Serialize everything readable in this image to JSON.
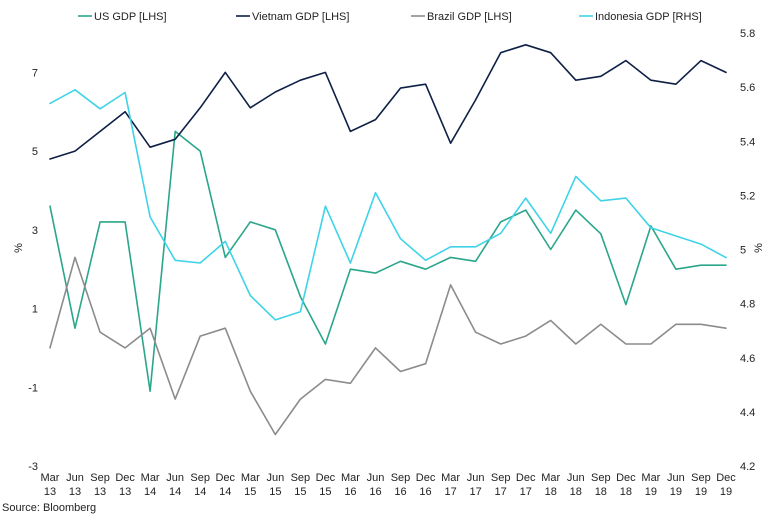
{
  "chart_data": {
    "type": "line",
    "categories": [
      [
        "Mar",
        "13"
      ],
      [
        "Jun",
        "13"
      ],
      [
        "Sep",
        "13"
      ],
      [
        "Dec",
        "13"
      ],
      [
        "Mar",
        "14"
      ],
      [
        "Jun",
        "14"
      ],
      [
        "Sep",
        "14"
      ],
      [
        "Dec",
        "14"
      ],
      [
        "Mar",
        "15"
      ],
      [
        "Jun",
        "15"
      ],
      [
        "Sep",
        "15"
      ],
      [
        "Dec",
        "15"
      ],
      [
        "Mar",
        "16"
      ],
      [
        "Jun",
        "16"
      ],
      [
        "Sep",
        "16"
      ],
      [
        "Dec",
        "16"
      ],
      [
        "Mar",
        "17"
      ],
      [
        "Jun",
        "17"
      ],
      [
        "Sep",
        "17"
      ],
      [
        "Dec",
        "17"
      ],
      [
        "Mar",
        "18"
      ],
      [
        "Jun",
        "18"
      ],
      [
        "Sep",
        "18"
      ],
      [
        "Dec",
        "18"
      ],
      [
        "Mar",
        "19"
      ],
      [
        "Jun",
        "19"
      ],
      [
        "Sep",
        "19"
      ],
      [
        "Dec",
        "19"
      ]
    ],
    "series": [
      {
        "name": "US GDP [LHS]",
        "axis": "left",
        "color": "#2aa68a",
        "values": [
          3.6,
          0.5,
          3.2,
          3.2,
          -1.1,
          5.5,
          5.0,
          2.3,
          3.2,
          3.0,
          1.3,
          0.1,
          2.0,
          1.9,
          2.2,
          2.0,
          2.3,
          2.2,
          3.2,
          3.5,
          2.5,
          3.5,
          2.9,
          1.1,
          3.1,
          2.0,
          2.1,
          2.1
        ]
      },
      {
        "name": "Vietnam GDP [LHS]",
        "axis": "left",
        "color": "#0e2045",
        "values": [
          4.8,
          5.0,
          5.5,
          6.0,
          5.1,
          5.3,
          6.1,
          7.0,
          6.1,
          6.5,
          6.8,
          7.0,
          5.5,
          5.8,
          6.6,
          6.7,
          5.2,
          6.3,
          7.5,
          7.7,
          7.5,
          6.8,
          6.9,
          7.3,
          6.8,
          6.7,
          7.3,
          7.0
        ]
      },
      {
        "name": "Brazil GDP [LHS]",
        "axis": "left",
        "color": "#8c8c8c",
        "values": [
          0.0,
          2.3,
          0.4,
          0.0,
          0.5,
          -1.3,
          0.3,
          0.5,
          -1.1,
          -2.2,
          -1.3,
          -0.8,
          -0.9,
          0.0,
          -0.6,
          -0.4,
          1.6,
          0.4,
          0.1,
          0.3,
          0.7,
          0.1,
          0.6,
          0.1,
          0.1,
          0.6,
          0.6,
          0.5
        ]
      },
      {
        "name": "Indonesia GDP [RHS]",
        "axis": "right",
        "color": "#3fd3e8",
        "values": [
          5.54,
          5.59,
          5.52,
          5.58,
          5.12,
          4.96,
          4.95,
          5.03,
          4.83,
          4.74,
          4.77,
          5.16,
          4.95,
          5.21,
          5.04,
          4.96,
          5.01,
          5.01,
          5.06,
          5.19,
          5.06,
          5.27,
          5.18,
          5.19,
          5.08,
          5.05,
          5.02,
          4.97
        ]
      }
    ],
    "left_axis": {
      "label": "%",
      "ylim": [
        -3,
        8
      ],
      "ticks": [
        -3,
        -1,
        1,
        3,
        5,
        7
      ]
    },
    "right_axis": {
      "label": "%",
      "ylim": [
        4.2,
        5.8
      ],
      "ticks": [
        "4.2",
        "4.4",
        "4.6",
        "4.8",
        "5",
        "5.2",
        "5.4",
        "5.6",
        "5.8"
      ]
    },
    "legend_position": "top",
    "grid": false
  },
  "source": "Source: Bloomberg"
}
